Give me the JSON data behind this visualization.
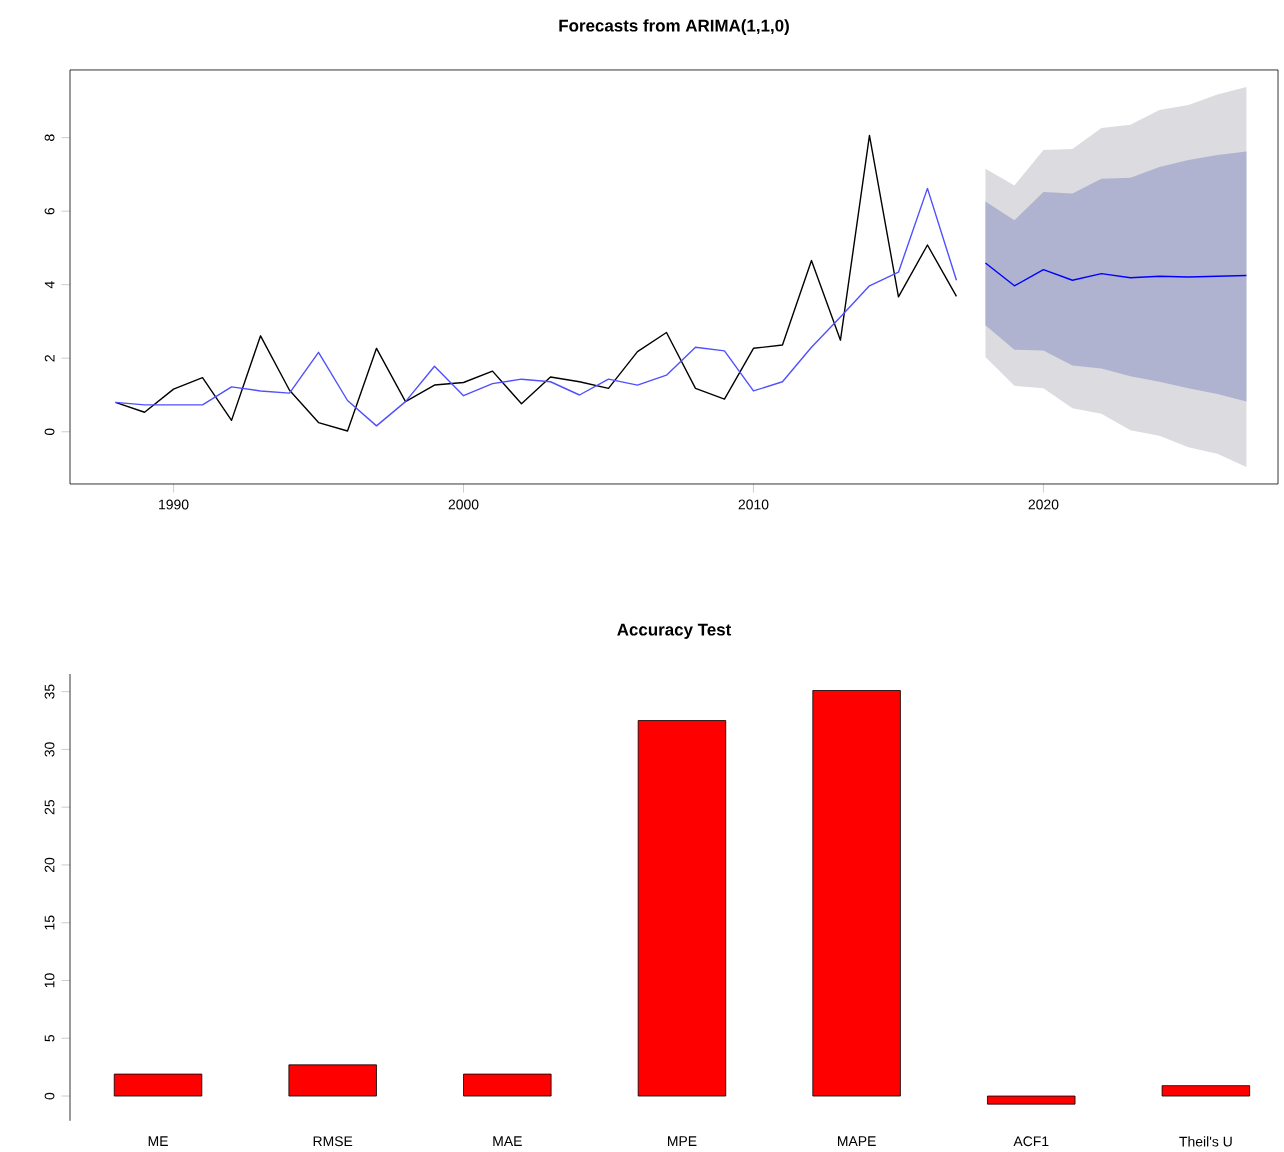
{
  "chart_data": [
    {
      "type": "line",
      "title": "Forecasts from ARIMA(1,1,0)",
      "xlim": [
        1986.43,
        2028.09
      ],
      "ylim": [
        -1.42,
        9.84
      ],
      "xticks": [
        1990,
        2000,
        2010,
        2020
      ],
      "yticks": [
        0,
        2,
        4,
        6,
        8
      ],
      "series": [
        {
          "type": "area",
          "color": "#dbdbe0",
          "x": [
            2018,
            2019,
            2020,
            2021,
            2022,
            2023,
            2024,
            2025,
            2026,
            2027
          ],
          "values": [
            null,
            null,
            null,
            null,
            null,
            null,
            null,
            null,
            null,
            null
          ],
          "lower": [
            2.03,
            1.25,
            1.18,
            0.64,
            0.49,
            0.04,
            -0.11,
            -0.42,
            -0.6,
            -0.96
          ],
          "upper": [
            7.15,
            6.7,
            7.66,
            7.69,
            8.26,
            8.35,
            8.75,
            8.89,
            9.17,
            9.38
          ]
        },
        {
          "type": "area",
          "color": "#b0b3d0",
          "x": [
            2018,
            2019,
            2020,
            2021,
            2022,
            2023,
            2024,
            2025,
            2026,
            2027
          ],
          "values": [
            null,
            null,
            null,
            null,
            null,
            null,
            null,
            null,
            null,
            null
          ],
          "lower": [
            2.9,
            2.23,
            2.21,
            1.8,
            1.72,
            1.51,
            1.36,
            1.18,
            1.03,
            0.82
          ],
          "upper": [
            6.26,
            5.75,
            6.52,
            6.48,
            6.88,
            6.91,
            7.2,
            7.39,
            7.53,
            7.62
          ]
        },
        {
          "type": "line",
          "color": "#000000",
          "x": [
            1988,
            1989,
            1990,
            1991,
            1992,
            1993,
            1994,
            1995,
            1996,
            1997,
            1998,
            1999,
            2000,
            2001,
            2002,
            2003,
            2004,
            2005,
            2006,
            2007,
            2008,
            2009,
            2010,
            2011,
            2012,
            2013,
            2014,
            2015,
            2016,
            2017
          ],
          "values": [
            0.8,
            0.53,
            1.16,
            1.47,
            0.31,
            2.61,
            1.13,
            0.25,
            0.02,
            2.27,
            0.82,
            1.27,
            1.34,
            1.65,
            0.76,
            1.49,
            1.36,
            1.18,
            2.18,
            2.7,
            1.18,
            0.89,
            2.27,
            2.36,
            4.66,
            2.49,
            8.06,
            3.67,
            5.08,
            3.68
          ]
        },
        {
          "type": "line",
          "color": "#5050ff",
          "x": [
            1988,
            1989,
            1990,
            1991,
            1992,
            1993,
            1994,
            1995,
            1996,
            1997,
            1998,
            1999,
            2000,
            2001,
            2002,
            2003,
            2004,
            2005,
            2006,
            2007,
            2008,
            2009,
            2010,
            2011,
            2012,
            2013,
            2014,
            2015,
            2016,
            2017
          ],
          "values": [
            0.8,
            0.73,
            0.73,
            0.73,
            1.22,
            1.11,
            1.05,
            2.16,
            0.85,
            0.16,
            0.82,
            1.78,
            0.98,
            1.31,
            1.43,
            1.36,
            1.0,
            1.43,
            1.27,
            1.54,
            2.3,
            2.2,
            1.11,
            1.36,
            2.3,
            3.12,
            3.97,
            4.34,
            6.62,
            4.12
          ]
        },
        {
          "type": "line",
          "color": "#0000ff",
          "x": [
            2018,
            2019,
            2020,
            2021,
            2022,
            2023,
            2024,
            2025,
            2026,
            2027
          ],
          "values": [
            4.59,
            3.97,
            4.41,
            4.12,
            4.3,
            4.19,
            4.23,
            4.21,
            4.23,
            4.25
          ]
        }
      ]
    },
    {
      "type": "bar",
      "title": "Accuracy Test",
      "categories": [
        "ME",
        "RMSE",
        "MAE",
        "MPE",
        "MAPE",
        "ACF1",
        "Theil's U"
      ],
      "values": [
        1.9,
        2.7,
        1.9,
        32.5,
        35.1,
        -0.7,
        0.9
      ],
      "color": "#ff0000",
      "ylim": [
        -2.14,
        36.53
      ],
      "yticks": [
        0,
        5,
        10,
        15,
        20,
        25,
        30,
        35
      ]
    }
  ]
}
